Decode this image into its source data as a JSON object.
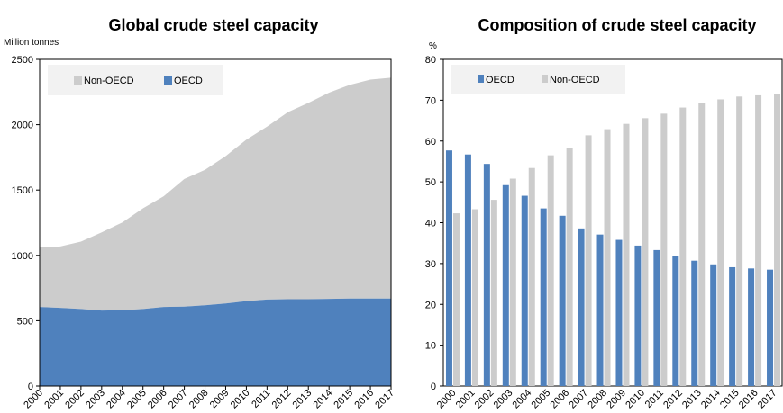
{
  "chart_data": [
    {
      "type": "area",
      "title": "Global crude steel capacity",
      "unit_label": "Million tonnes",
      "xlabel": "",
      "ylabel": "",
      "categories": [
        "2000",
        "2001",
        "2002",
        "2003",
        "2004",
        "2005",
        "2006",
        "2007",
        "2008",
        "2009",
        "2010",
        "2011",
        "2012",
        "2013",
        "2014",
        "2015",
        "2016",
        "2017"
      ],
      "ylim": [
        0,
        2500
      ],
      "yticks": [
        0,
        500,
        1000,
        1500,
        2000,
        2500
      ],
      "stacked": true,
      "legend_position": "top-left",
      "series": [
        {
          "name": "OECD",
          "color": "#4f81bd",
          "values": [
            605,
            598,
            590,
            578,
            580,
            590,
            605,
            608,
            618,
            632,
            650,
            662,
            665,
            665,
            667,
            670,
            670,
            670
          ]
        },
        {
          "name": "Non-OECD",
          "color": "#cccccc",
          "values": [
            455,
            470,
            515,
            598,
            672,
            770,
            847,
            977,
            1037,
            1128,
            1235,
            1323,
            1430,
            1502,
            1578,
            1635,
            1675,
            1690
          ]
        }
      ],
      "legend_order": [
        "Non-OECD",
        "OECD"
      ]
    },
    {
      "type": "bar",
      "title": "Composition of  crude steel capacity",
      "unit_label": "%",
      "xlabel": "",
      "ylabel": "",
      "categories": [
        "2000",
        "2001",
        "2002",
        "2003",
        "2004",
        "2005",
        "2006",
        "2007",
        "2008",
        "2009",
        "2010",
        "2011",
        "2012",
        "2013",
        "2014",
        "2015",
        "2016",
        "2017"
      ],
      "ylim": [
        0,
        80
      ],
      "yticks": [
        0,
        10,
        20,
        30,
        40,
        50,
        60,
        70,
        80
      ],
      "legend_position": "top-left",
      "series": [
        {
          "name": "OECD",
          "color": "#4f81bd",
          "values": [
            57.7,
            56.7,
            54.4,
            49.2,
            46.6,
            43.5,
            41.7,
            38.6,
            37.1,
            35.8,
            34.4,
            33.3,
            31.8,
            30.7,
            29.8,
            29.1,
            28.8,
            28.5
          ]
        },
        {
          "name": "Non-OECD",
          "color": "#cccccc",
          "values": [
            42.3,
            43.3,
            45.6,
            50.8,
            53.4,
            56.5,
            58.3,
            61.4,
            62.9,
            64.2,
            65.6,
            66.7,
            68.2,
            69.3,
            70.2,
            70.9,
            71.2,
            71.5
          ]
        }
      ],
      "legend_order": [
        "OECD",
        "Non-OECD"
      ]
    }
  ]
}
